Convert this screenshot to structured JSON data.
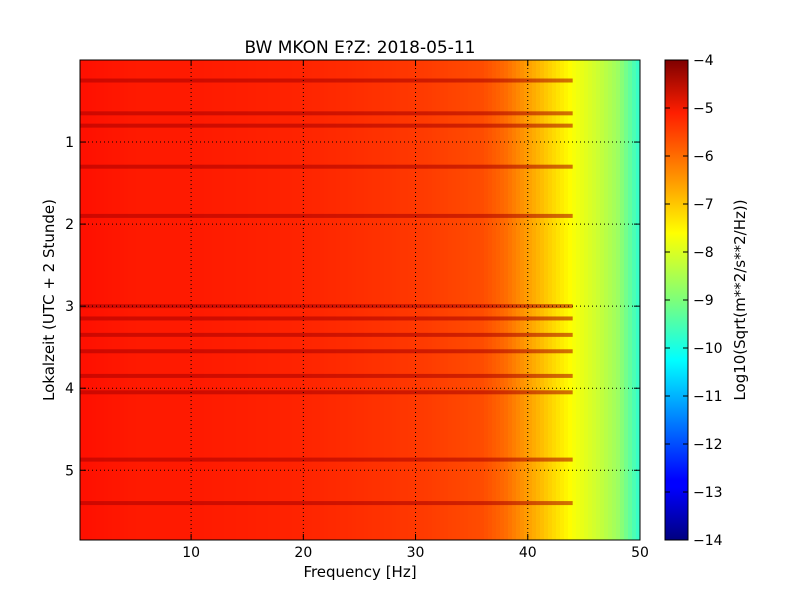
{
  "chart_data": {
    "type": "heatmap",
    "title": "BW MKON E?Z: 2018-05-11",
    "xlabel": "Frequency [Hz]",
    "ylabel": "Lokalzeit (UTC + 2 Stunde)",
    "xlim": [
      0.1,
      50
    ],
    "ylim": [
      5.85,
      0.0
    ],
    "xticks": [
      10,
      20,
      30,
      40,
      50
    ],
    "xtick_labels": [
      "10",
      "20",
      "30",
      "40",
      "50"
    ],
    "yticks": [
      1,
      2,
      3,
      4,
      5
    ],
    "ytick_labels": [
      "1",
      "2",
      "3",
      "4",
      "5"
    ],
    "grid": true,
    "colorbar": {
      "label": "Log10(Sqrt(m**2/s**2/Hz))",
      "range": [
        -14,
        -4
      ],
      "ticks": [
        -4,
        -5,
        -6,
        -7,
        -8,
        -9,
        -10,
        -11,
        -12,
        -13,
        -14
      ],
      "tick_labels": [
        "−4",
        "−5",
        "−6",
        "−7",
        "−8",
        "−9",
        "−10",
        "−11",
        "−12",
        "−13",
        "−14"
      ],
      "colormap": "jet"
    },
    "value_profile": {
      "frequency_hz": [
        0.1,
        5,
        10,
        20,
        30,
        36,
        38,
        40,
        42,
        44,
        46,
        48,
        50
      ],
      "log10_amplitude": [
        -5.4,
        -5.5,
        -5.5,
        -5.6,
        -5.8,
        -6.0,
        -6.3,
        -6.8,
        -7.3,
        -7.8,
        -8.2,
        -8.7,
        -9.8
      ]
    },
    "strong_bands_hours": [
      0.25,
      0.65,
      0.8,
      1.3,
      1.9,
      3.0,
      3.15,
      3.35,
      3.55,
      3.85,
      4.05,
      4.87,
      5.4
    ]
  }
}
